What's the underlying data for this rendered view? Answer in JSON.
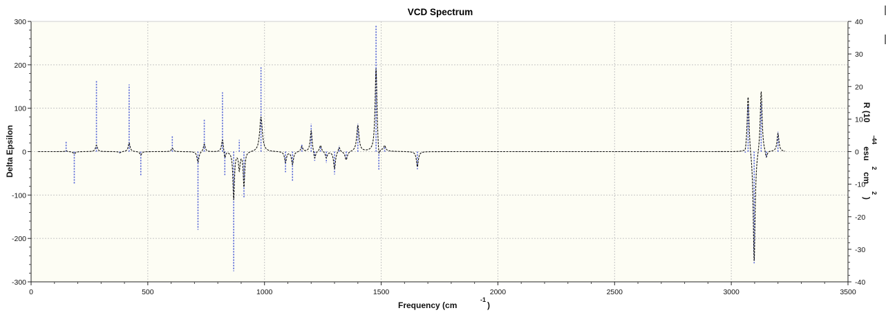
{
  "chart_data": {
    "type": "line",
    "title": "VCD Spectrum",
    "xlabel": "Frequency (cm",
    "xlabel_sup": "-1",
    "xlabel_tail": ")",
    "ylabel": "Delta Epsilon",
    "y2label_parts": [
      "R (10",
      "-44",
      "esu",
      "2",
      "cm",
      "2",
      ")"
    ],
    "xlim": [
      0,
      3500
    ],
    "ylim": [
      -300,
      300
    ],
    "y2lim": [
      -40,
      40
    ],
    "xticks": [
      "0",
      "500",
      "1000",
      "1500",
      "2000",
      "2500",
      "3000",
      "3500"
    ],
    "yticks": [
      "300",
      "200",
      "100",
      "0",
      "-100",
      "-200",
      "-300"
    ],
    "y2ticks": [
      "40",
      "30",
      "20",
      "10",
      "0",
      "-10",
      "-20",
      "-30",
      "-40"
    ],
    "grid": true,
    "colors": {
      "plot_background": "#fdfdf4",
      "grid": "#c4c4c4",
      "spectrum": "#111111",
      "rotatory_strengths": "#4a5bd4"
    },
    "series": [
      {
        "kind": "spectrum",
        "axis": "left",
        "x_range": [
          30,
          3230
        ],
        "peaks": [
          [
            150,
            2,
            5
          ],
          [
            185,
            -5,
            6
          ],
          [
            280,
            15,
            5
          ],
          [
            380,
            -3,
            6
          ],
          [
            420,
            20,
            5
          ],
          [
            470,
            -8,
            5
          ],
          [
            605,
            8,
            5
          ],
          [
            715,
            -25,
            5
          ],
          [
            742,
            18,
            5
          ],
          [
            820,
            30,
            5
          ],
          [
            830,
            -18,
            4
          ],
          [
            868,
            -110,
            4
          ],
          [
            892,
            -40,
            4
          ],
          [
            912,
            -80,
            4
          ],
          [
            985,
            80,
            7
          ],
          [
            1090,
            -25,
            5
          ],
          [
            1120,
            -30,
            5
          ],
          [
            1160,
            12,
            5
          ],
          [
            1200,
            50,
            5
          ],
          [
            1215,
            -20,
            5
          ],
          [
            1240,
            15,
            5
          ],
          [
            1265,
            -15,
            5
          ],
          [
            1300,
            -40,
            5
          ],
          [
            1320,
            12,
            5
          ],
          [
            1350,
            -20,
            6
          ],
          [
            1400,
            60,
            6
          ],
          [
            1478,
            195,
            5
          ],
          [
            1490,
            -30,
            5
          ],
          [
            1515,
            12,
            5
          ],
          [
            1655,
            -35,
            5
          ],
          [
            3060,
            -10,
            5
          ],
          [
            3072,
            135,
            5
          ],
          [
            3098,
            -260,
            5
          ],
          [
            3128,
            145,
            5
          ],
          [
            3150,
            -18,
            5
          ],
          [
            3200,
            42,
            5
          ]
        ]
      },
      {
        "kind": "rotatory-strength",
        "axis": "right",
        "sticks": [
          [
            150,
            3.4
          ],
          [
            185,
            -10
          ],
          [
            280,
            22
          ],
          [
            380,
            -0.5
          ],
          [
            420,
            20.6
          ],
          [
            470,
            -7.5
          ],
          [
            605,
            5
          ],
          [
            715,
            -24
          ],
          [
            742,
            10
          ],
          [
            820,
            18.2
          ],
          [
            830,
            -7.2
          ],
          [
            868,
            -36.7
          ],
          [
            892,
            3.6
          ],
          [
            912,
            -14
          ],
          [
            985,
            25.9
          ],
          [
            1090,
            -6.3
          ],
          [
            1120,
            -8.9
          ],
          [
            1160,
            2.1
          ],
          [
            1200,
            8.6
          ],
          [
            1215,
            -2.8
          ],
          [
            1240,
            1.5
          ],
          [
            1265,
            -3.5
          ],
          [
            1300,
            -7
          ],
          [
            1320,
            1.8
          ],
          [
            1350,
            -2
          ],
          [
            1400,
            8.6
          ],
          [
            1478,
            38.7
          ],
          [
            1490,
            -5.5
          ],
          [
            1515,
            1.6
          ],
          [
            1655,
            -5.4
          ],
          [
            3060,
            -0.3
          ],
          [
            3072,
            14.5
          ],
          [
            3098,
            -34.3
          ],
          [
            3128,
            15.3
          ],
          [
            3150,
            -1.8
          ],
          [
            3200,
            6.1
          ]
        ]
      }
    ]
  }
}
